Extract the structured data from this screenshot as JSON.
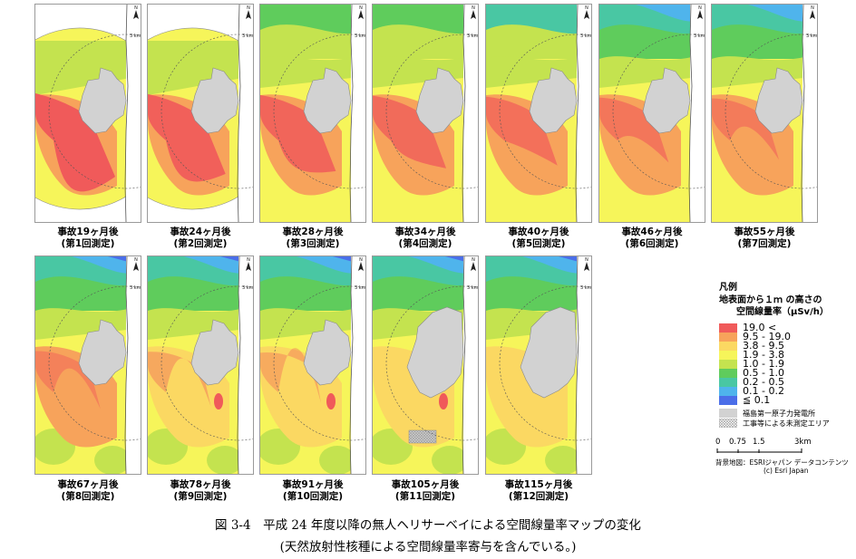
{
  "maps": [
    {
      "label": "事故19ヶ月後",
      "survey": "(第1回測定)"
    },
    {
      "label": "事故24ヶ月後",
      "survey": "(第2回測定)"
    },
    {
      "label": "事故28ヶ月後",
      "survey": "(第3回測定)"
    },
    {
      "label": "事故34ヶ月後",
      "survey": "(第4回測定)"
    },
    {
      "label": "事故40ヶ月後",
      "survey": "(第5回測定)"
    },
    {
      "label": "事故46ヶ月後",
      "survey": "(第6回測定)"
    },
    {
      "label": "事故55ヶ月後",
      "survey": "(第7回測定)"
    },
    {
      "label": "事故67ヶ月後",
      "survey": "(第8回測定)"
    },
    {
      "label": "事故78ヶ月後",
      "survey": "(第9回測定)"
    },
    {
      "label": "事故91ヶ月後",
      "survey": "(第10回測定)"
    },
    {
      "label": "事故105ヶ月後",
      "survey": "(第11回測定)"
    },
    {
      "label": "事故115ヶ月後",
      "survey": "(第12回測定)"
    }
  ],
  "map_common": {
    "north_label": "N",
    "ring_label": "3 km"
  },
  "legend": {
    "title": "凡例",
    "subtitle_line1": "地表面から１ｍ の高さの",
    "subtitle_line2": "空間線量率（μSv/h）",
    "classes": [
      {
        "label": "19.0 <",
        "color": "#f05a5a"
      },
      {
        "label": "9.5 - 19.0",
        "color": "#f7a35b"
      },
      {
        "label": "3.8 - 9.5",
        "color": "#fbd862"
      },
      {
        "label": "1.9 - 3.8",
        "color": "#f6f55a"
      },
      {
        "label": "1.0 - 1.9",
        "color": "#c4e34f"
      },
      {
        "label": "0.5 - 1.0",
        "color": "#5fcc5c"
      },
      {
        "label": "0.2 - 0.5",
        "color": "#49c7a3"
      },
      {
        "label": "0.1 - 0.2",
        "color": "#4fb4ec"
      },
      {
        "label": "≦ 0.1",
        "color": "#4b6ee8"
      }
    ],
    "plant_label": "福島第一原子力発電所",
    "plant_color": "#d2d2d2",
    "unmeasured_label": "工事等による未測定エリア"
  },
  "scale": {
    "ticks": [
      "0",
      "0.75",
      "1.5",
      "3km"
    ],
    "basemap_credit": "背景地図：ESRIジャパン データコンテンツ",
    "esri_credit": "(c) Esri Japan"
  },
  "figure": {
    "caption": "図 3-4　平成 24 年度以降の無人ヘリサーベイによる空間線量率マップの変化",
    "subcaption": "(天然放射性核種による空間線量率寄与を含んでいる。)"
  }
}
